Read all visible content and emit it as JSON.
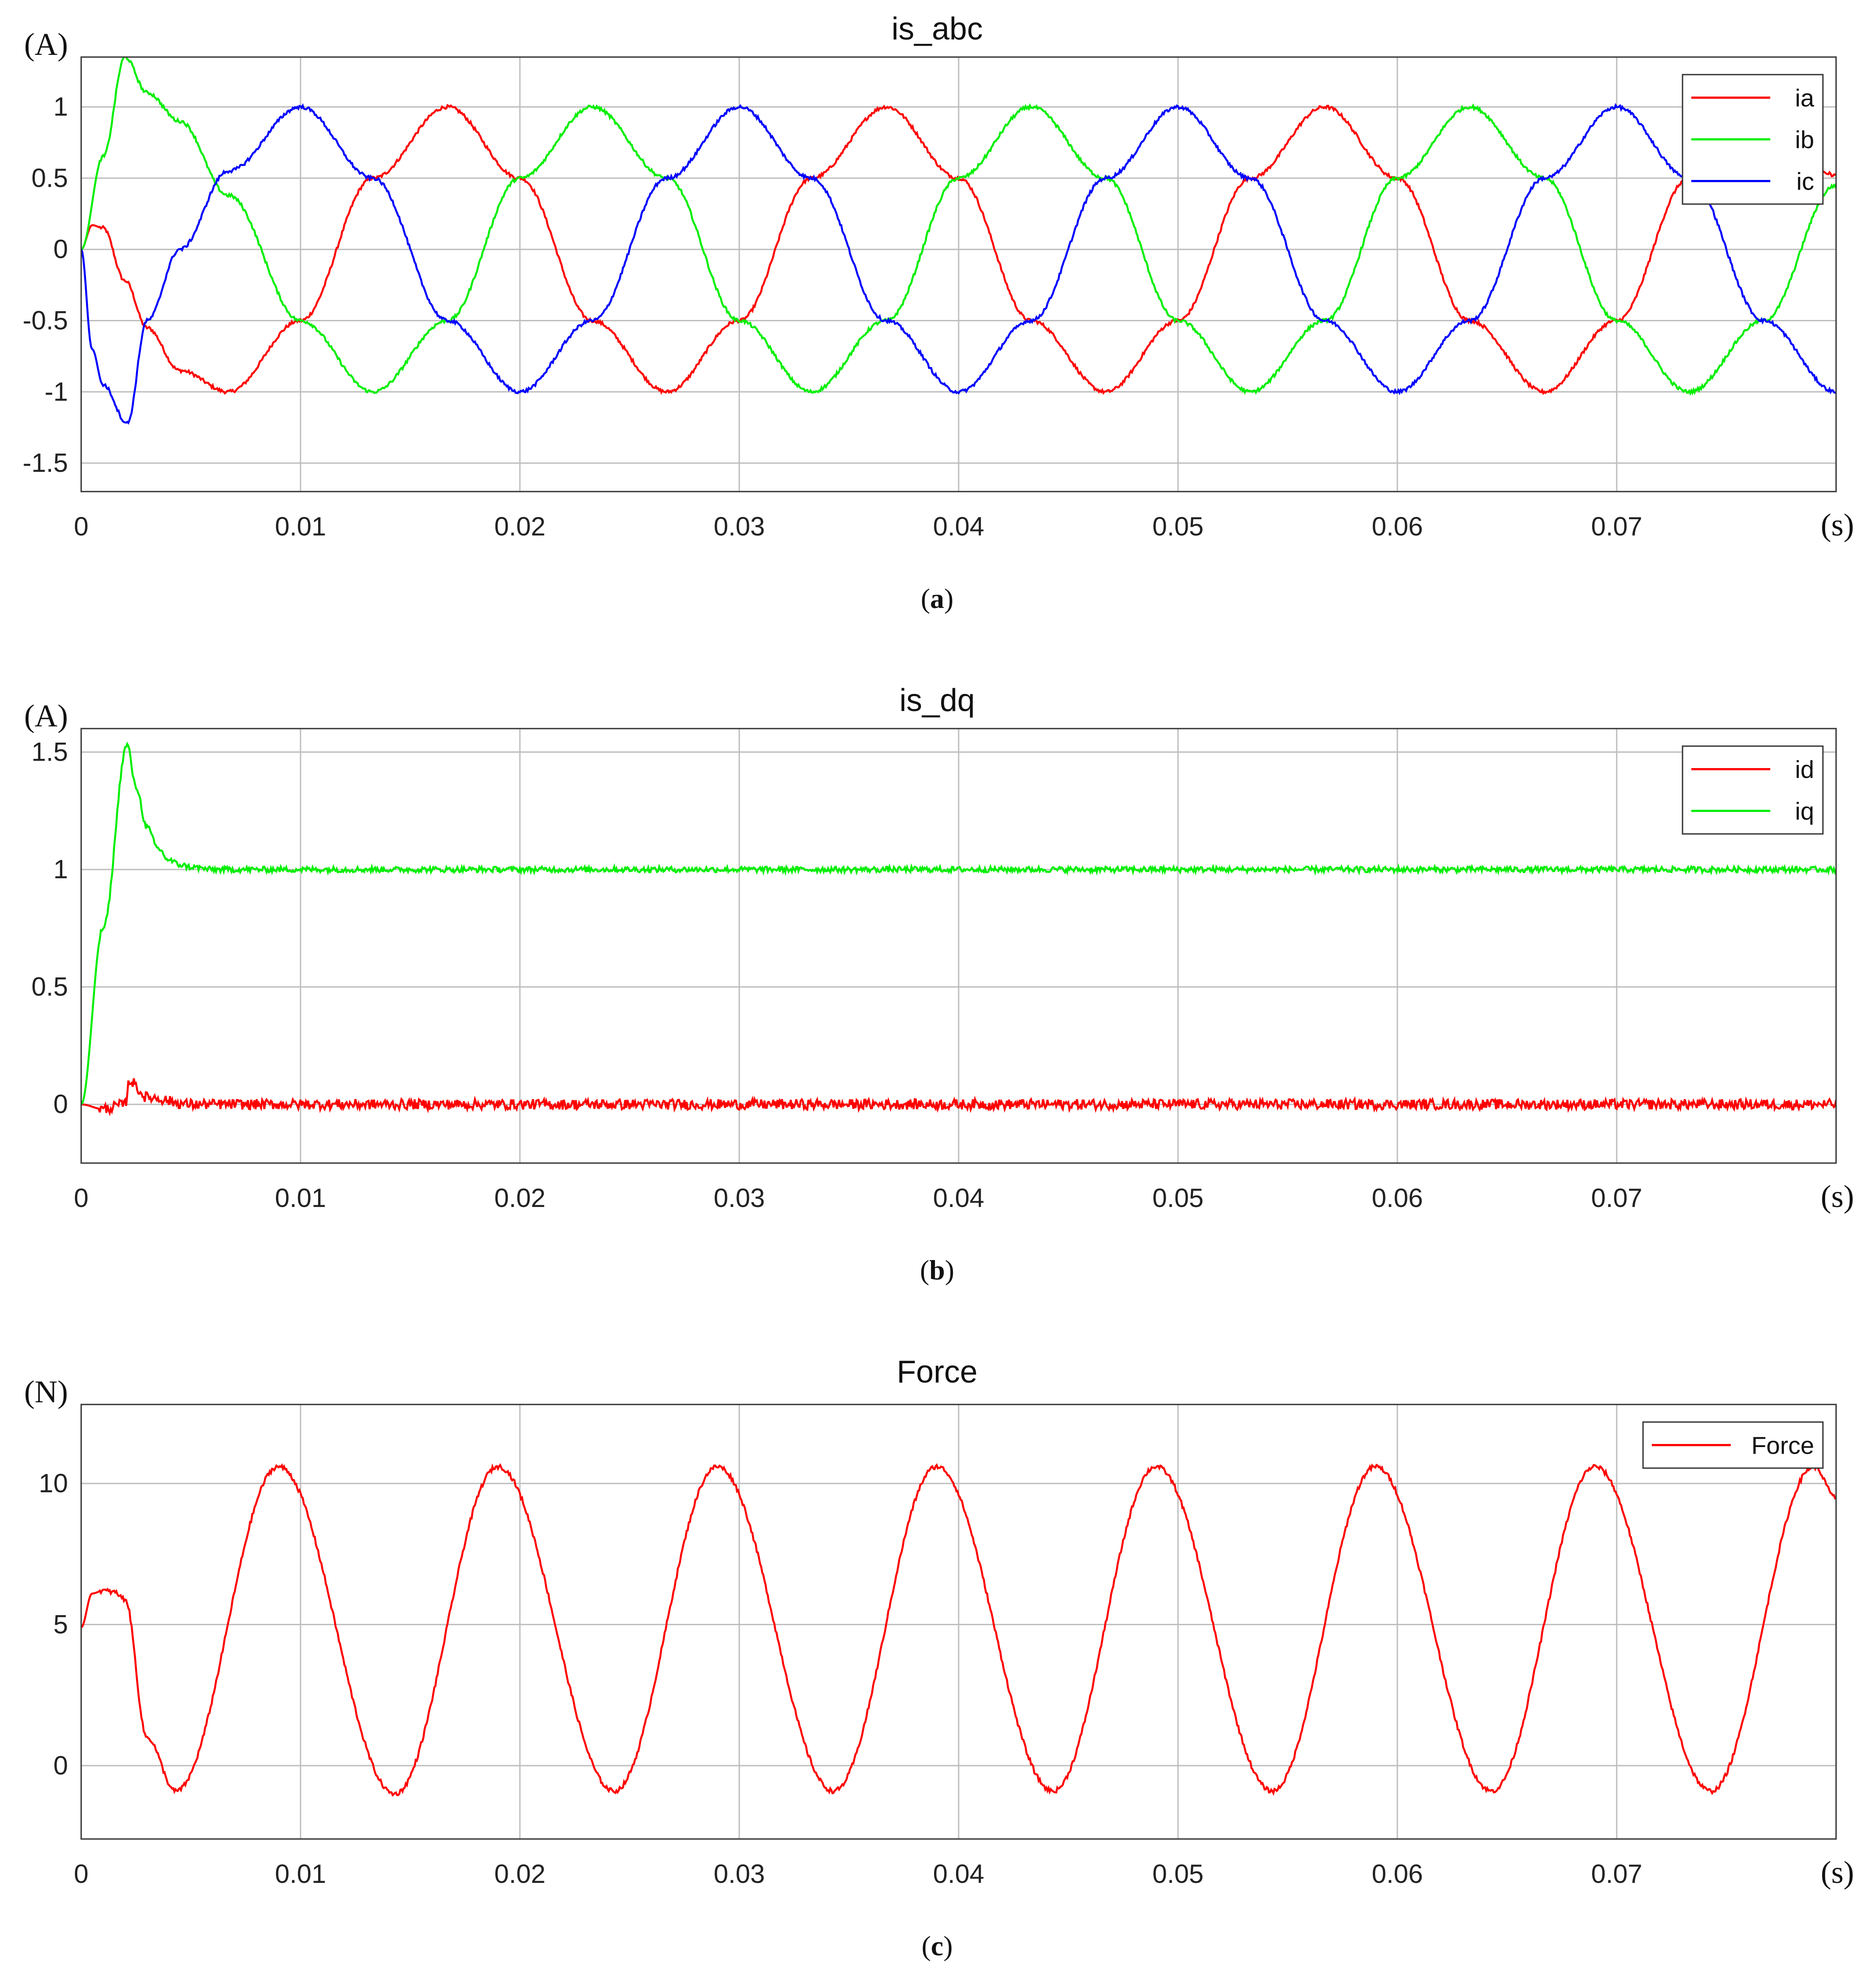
{
  "chart_data": [
    {
      "id": "a",
      "type": "line",
      "title": "is_abc",
      "y_unit": "(A)",
      "x_unit": "(s)",
      "caption_letter": "a",
      "xlim": [
        0,
        0.08
      ],
      "ylim": [
        -1.7,
        1.35
      ],
      "x_ticks": [
        0,
        0.01,
        0.02,
        0.03,
        0.04,
        0.05,
        0.06,
        0.07
      ],
      "x_tick_labels": [
        "0",
        "0.01",
        "0.02",
        "0.03",
        "0.04",
        "0.05",
        "0.06",
        "0.07"
      ],
      "y_ticks": [
        -1.5,
        -1,
        -0.5,
        0,
        0.5,
        1
      ],
      "y_tick_labels": [
        "-1.5",
        "-1",
        "-0.5",
        "0",
        "0.5",
        "1"
      ],
      "grid": true,
      "legend_position": "top-right",
      "series": [
        {
          "name": "ia",
          "color": "#ff0000",
          "x": [
            0,
            0.0005,
            0.001,
            0.002,
            0.003,
            0.0045,
            0.0067,
            0.01,
            0.0133,
            0.0167,
            0.02,
            0.0233,
            0.0267,
            0.03,
            0.0333,
            0.0367,
            0.04,
            0.0433,
            0.0467,
            0.05,
            0.0533,
            0.0567,
            0.06,
            0.0633,
            0.0667,
            0.07,
            0.0733,
            0.0767,
            0.08
          ],
          "values": [
            0,
            0.17,
            0.15,
            -0.22,
            -0.55,
            -0.85,
            -1.0,
            -0.5,
            0.5,
            1.0,
            0.5,
            -0.5,
            -1.0,
            -0.5,
            0.5,
            1.0,
            0.5,
            -0.5,
            -1.0,
            -0.5,
            0.5,
            1.0,
            0.5,
            -0.5,
            -1.0,
            -0.5,
            0.5,
            1.0,
            0.52
          ]
        },
        {
          "name": "ib",
          "color": "#00ee00",
          "x": [
            0,
            0.001,
            0.002,
            0.003,
            0.0045,
            0.0067,
            0.01,
            0.0133,
            0.0167,
            0.02,
            0.0233,
            0.0267,
            0.03,
            0.0333,
            0.0367,
            0.04,
            0.0433,
            0.0467,
            0.05,
            0.0533,
            0.0567,
            0.06,
            0.0633,
            0.0667,
            0.07,
            0.0733,
            0.0767,
            0.08
          ],
          "values": [
            0,
            0.65,
            1.35,
            1.1,
            0.9,
            0.38,
            -0.5,
            -1.0,
            -0.5,
            0.5,
            1.0,
            0.5,
            -0.5,
            -1.0,
            -0.5,
            0.5,
            1.0,
            0.5,
            -0.5,
            -1.0,
            -0.5,
            0.5,
            1.0,
            0.5,
            -0.5,
            -1.0,
            -0.5,
            0.45
          ]
        },
        {
          "name": "ic",
          "color": "#0000ff",
          "x": [
            0,
            0.0005,
            0.001,
            0.0021,
            0.003,
            0.0045,
            0.0067,
            0.01,
            0.0133,
            0.0167,
            0.02,
            0.0233,
            0.0267,
            0.03,
            0.0333,
            0.0367,
            0.04,
            0.0433,
            0.0467,
            0.05,
            0.0533,
            0.0567,
            0.06,
            0.0633,
            0.0667,
            0.07,
            0.0733,
            0.0767,
            0.08
          ],
          "values": [
            0,
            -0.7,
            -0.95,
            -1.22,
            -0.5,
            0.0,
            0.55,
            1.0,
            0.5,
            -0.5,
            -1.0,
            -0.5,
            0.5,
            1.0,
            0.5,
            -0.5,
            -1.0,
            -0.5,
            0.5,
            1.0,
            0.5,
            -0.5,
            -1.0,
            -0.5,
            0.5,
            1.0,
            0.5,
            -0.5,
            -1.0
          ]
        }
      ]
    },
    {
      "id": "b",
      "type": "line",
      "title": "is_dq",
      "y_unit": "(A)",
      "x_unit": "(s)",
      "caption_letter": "b",
      "xlim": [
        0,
        0.08
      ],
      "ylim": [
        -0.25,
        1.6
      ],
      "x_ticks": [
        0,
        0.01,
        0.02,
        0.03,
        0.04,
        0.05,
        0.06,
        0.07
      ],
      "x_tick_labels": [
        "0",
        "0.01",
        "0.02",
        "0.03",
        "0.04",
        "0.05",
        "0.06",
        "0.07"
      ],
      "y_ticks": [
        0,
        0.5,
        1,
        1.5
      ],
      "y_tick_labels": [
        "0",
        "0.5",
        "1",
        "1.5"
      ],
      "grid": true,
      "legend_position": "top-right",
      "series": [
        {
          "name": "id",
          "color": "#ff0000",
          "x": [
            0,
            0.001,
            0.002,
            0.0022,
            0.003,
            0.005,
            0.01,
            0.02,
            0.03,
            0.04,
            0.05,
            0.06,
            0.07,
            0.08
          ],
          "values": [
            0.0,
            -0.02,
            0.0,
            0.1,
            0.03,
            0.0,
            0.0,
            0.0,
            0.0,
            0.0,
            0.0,
            0.0,
            0.0,
            0.0
          ]
        },
        {
          "name": "iq",
          "color": "#00ee00",
          "x": [
            0,
            0.001,
            0.0021,
            0.0025,
            0.003,
            0.0035,
            0.004,
            0.0045,
            0.005,
            0.006,
            0.01,
            0.02,
            0.03,
            0.04,
            0.05,
            0.06,
            0.07,
            0.08
          ],
          "values": [
            0.0,
            0.75,
            1.53,
            1.35,
            1.18,
            1.09,
            1.04,
            1.02,
            1.01,
            1.0,
            1.0,
            1.0,
            1.0,
            1.0,
            1.0,
            1.0,
            1.0,
            1.0
          ]
        }
      ]
    },
    {
      "id": "c",
      "type": "line",
      "title": "Force",
      "y_unit": "(N)",
      "x_unit": "(s)",
      "caption_letter": "c",
      "xlim": [
        0,
        0.08
      ],
      "ylim": [
        -2.6,
        12.8
      ],
      "x_ticks": [
        0,
        0.01,
        0.02,
        0.03,
        0.04,
        0.05,
        0.06,
        0.07
      ],
      "x_tick_labels": [
        "0",
        "0.01",
        "0.02",
        "0.03",
        "0.04",
        "0.05",
        "0.06",
        "0.07"
      ],
      "y_ticks": [
        0,
        5,
        10
      ],
      "y_tick_labels": [
        "0",
        "5",
        "10"
      ],
      "grid": true,
      "legend_position": "top-right",
      "series": [
        {
          "name": "Force",
          "color": "#ff0000",
          "x": [
            0,
            0.0005,
            0.001,
            0.0015,
            0.002,
            0.003,
            0.0043,
            0.009,
            0.0143,
            0.019,
            0.0243,
            0.029,
            0.0343,
            0.039,
            0.0443,
            0.049,
            0.0543,
            0.059,
            0.0643,
            0.069,
            0.0743,
            0.079,
            0.08
          ],
          "values": [
            4.9,
            6.1,
            6.2,
            6.15,
            5.9,
            1.0,
            -0.9,
            10.6,
            -1.0,
            10.6,
            -0.9,
            10.6,
            -0.9,
            10.6,
            -0.9,
            10.6,
            -0.9,
            10.6,
            -0.9,
            10.6,
            -0.9,
            10.6,
            9.5
          ]
        }
      ]
    }
  ]
}
